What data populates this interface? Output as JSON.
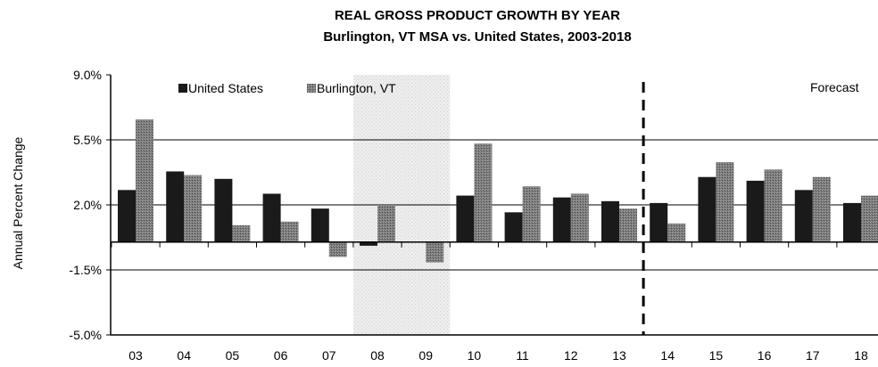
{
  "chart_data": {
    "type": "bar",
    "title": "REAL GROSS PRODUCT GROWTH BY YEAR",
    "subtitle": "Burlington, VT MSA vs. United States, 2003-2018",
    "ylabel": "Annual Percent Change",
    "xlabel": "",
    "ylim": [
      -5.0,
      9.0
    ],
    "yticks": [
      "9.0%",
      "5.5%",
      "2.0%",
      "-1.5%",
      "-5.0%"
    ],
    "ytick_values": [
      9.0,
      5.5,
      2.0,
      -1.5,
      -5.0
    ],
    "categories": [
      "03",
      "04",
      "05",
      "06",
      "07",
      "08",
      "09",
      "10",
      "11",
      "12",
      "13",
      "14",
      "15",
      "16",
      "17",
      "18"
    ],
    "series": [
      {
        "name": "United States",
        "color": "#1a1a1a",
        "values": [
          2.8,
          3.8,
          3.4,
          2.6,
          1.8,
          -0.2,
          0.0,
          2.5,
          1.6,
          2.4,
          2.2,
          2.1,
          3.5,
          3.3,
          2.8,
          2.1
        ]
      },
      {
        "name": "Burlington, VT",
        "color": "#6e6e6e",
        "values": [
          6.6,
          3.6,
          0.9,
          1.1,
          -0.8,
          2.0,
          -1.1,
          5.3,
          3.0,
          2.6,
          1.8,
          1.0,
          4.3,
          3.9,
          3.5,
          2.5
        ]
      }
    ],
    "recession_shading": {
      "start": "08",
      "end": "09"
    },
    "forecast": {
      "label": "Forecast",
      "starts_after": "13"
    },
    "gridlines": [
      5.5,
      2.0,
      -1.5
    ],
    "legend_position": "top-left",
    "grid": true
  }
}
